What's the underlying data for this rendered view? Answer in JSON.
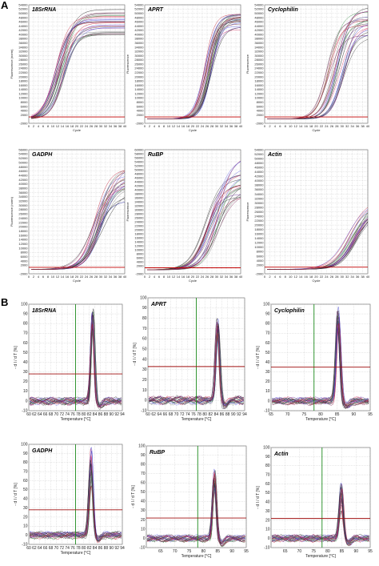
{
  "panels": {
    "A": "A",
    "B": "B"
  },
  "palette": [
    "#1a1a1a",
    "#3a3a3a",
    "#777777",
    "#c01830",
    "#e03c6a",
    "#7a1a50",
    "#3535c8",
    "#5a5ae0",
    "#2a8a3a",
    "#6a2a9a"
  ],
  "threshold_color": "#c00000",
  "melt_vline_color": "#1c8a1c",
  "melt_hline_color": "#a01010",
  "chart_data": [
    {
      "type": "line",
      "group": "A",
      "title": "18SrRNA",
      "xlabel": "Cycle",
      "ylabel": "Fluorescence (norm)",
      "xlim": [
        0,
        40
      ],
      "ylim": [
        -2000,
        54000
      ],
      "xticks": [
        0,
        2,
        4,
        6,
        8,
        10,
        12,
        14,
        16,
        18,
        20,
        22,
        24,
        26,
        28,
        30,
        32,
        34,
        36,
        38,
        40
      ],
      "yticks": [
        -2000,
        2000,
        4000,
        6000,
        8000,
        10000,
        12000,
        14000,
        16000,
        18000,
        20000,
        22000,
        24000,
        26000,
        28000,
        30000,
        32000,
        34000,
        36000,
        38000,
        40000,
        42000,
        44000,
        46000,
        48000,
        50000,
        52000,
        54000
      ],
      "threshold": 1000,
      "grid": true,
      "curve_count": 24,
      "midpoint_range": [
        11,
        15
      ],
      "plateau_range": [
        39000,
        52000
      ],
      "slope_range": [
        0.3,
        0.4
      ]
    },
    {
      "type": "line",
      "group": "A",
      "title": "APRT",
      "xlabel": "Cycle",
      "ylabel": "Fluorescence",
      "xlim": [
        0,
        40
      ],
      "ylim": [
        -2000,
        54000
      ],
      "xticks": [
        0,
        2,
        4,
        6,
        8,
        10,
        12,
        14,
        16,
        18,
        20,
        22,
        24,
        26,
        28,
        30,
        32,
        34,
        36,
        38,
        40
      ],
      "yticks": [
        -2000,
        2000,
        4000,
        6000,
        8000,
        10000,
        12000,
        14000,
        16000,
        18000,
        20000,
        22000,
        24000,
        26000,
        28000,
        30000,
        32000,
        34000,
        36000,
        38000,
        40000,
        42000,
        44000,
        46000,
        48000,
        50000,
        52000,
        54000
      ],
      "threshold": 1000,
      "grid": true,
      "curve_count": 24,
      "midpoint_range": [
        25,
        28
      ],
      "plateau_range": [
        42000,
        50000
      ],
      "slope_range": [
        0.4,
        0.5
      ]
    },
    {
      "type": "line",
      "group": "A",
      "title": "Cyclophilin",
      "xlabel": "Cycle",
      "ylabel": "Fluorescence",
      "xlim": [
        0,
        40
      ],
      "ylim": [
        -2000,
        54000
      ],
      "xticks": [
        0,
        2,
        4,
        6,
        8,
        10,
        12,
        14,
        16,
        18,
        20,
        22,
        24,
        26,
        28,
        30,
        32,
        34,
        36,
        38,
        40
      ],
      "yticks": [
        -2000,
        2000,
        4000,
        6000,
        8000,
        10000,
        12000,
        14000,
        16000,
        18000,
        20000,
        22000,
        24000,
        26000,
        28000,
        30000,
        32000,
        34000,
        36000,
        38000,
        40000,
        42000,
        44000,
        46000,
        48000,
        50000,
        52000,
        54000
      ],
      "threshold": 1000,
      "grid": true,
      "curve_count": 24,
      "midpoint_range": [
        24,
        31
      ],
      "plateau_range": [
        38000,
        54000
      ],
      "slope_range": [
        0.35,
        0.45
      ]
    },
    {
      "type": "line",
      "group": "A",
      "title": "GADPH",
      "xlabel": "Cycle",
      "ylabel": "Fluorescence (norm)",
      "xlim": [
        0,
        40
      ],
      "ylim": [
        -2000,
        56000
      ],
      "xticks": [
        0,
        2,
        4,
        6,
        8,
        10,
        12,
        14,
        16,
        18,
        20,
        22,
        24,
        26,
        28,
        30,
        32,
        34,
        36,
        38,
        40
      ],
      "yticks": [
        -2000,
        2000,
        4000,
        6000,
        8000,
        10000,
        12000,
        14000,
        16000,
        18000,
        20000,
        22000,
        24000,
        26000,
        28000,
        30000,
        32000,
        34000,
        36000,
        38000,
        40000,
        42000,
        44000,
        46000,
        48000,
        50000,
        52000,
        54000,
        56000
      ],
      "threshold": 1000,
      "grid": true,
      "curve_count": 24,
      "midpoint_range": [
        27,
        31
      ],
      "plateau_range": [
        32000,
        50000
      ],
      "slope_range": [
        0.25,
        0.35
      ]
    },
    {
      "type": "line",
      "group": "A",
      "title": "RuBP",
      "xlabel": "Cycle",
      "ylabel": "Fluorescence",
      "xlim": [
        0,
        40
      ],
      "ylim": [
        -2000,
        60000
      ],
      "xticks": [
        0,
        2,
        4,
        6,
        8,
        10,
        12,
        14,
        16,
        18,
        20,
        22,
        24,
        26,
        28,
        30,
        32,
        34,
        36,
        38,
        40
      ],
      "yticks": [
        -2000,
        2000,
        4000,
        6000,
        8000,
        10000,
        12000,
        14000,
        16000,
        18000,
        20000,
        22000,
        24000,
        26000,
        28000,
        30000,
        32000,
        34000,
        36000,
        38000,
        40000,
        42000,
        44000,
        46000,
        48000,
        50000,
        52000,
        54000,
        56000,
        58000,
        60000
      ],
      "threshold": 1000,
      "grid": true,
      "curve_count": 24,
      "midpoint_range": [
        25,
        31
      ],
      "plateau_range": [
        36000,
        58000
      ],
      "slope_range": [
        0.25,
        0.35
      ]
    },
    {
      "type": "line",
      "group": "A",
      "title": "Actin",
      "xlabel": "Cycle",
      "ylabel": "Fluorescence",
      "xlim": [
        0,
        40
      ],
      "ylim": [
        -2000,
        54000
      ],
      "xticks": [
        0,
        2,
        4,
        6,
        8,
        10,
        12,
        14,
        16,
        18,
        20,
        22,
        24,
        26,
        28,
        30,
        32,
        34,
        36,
        38,
        40
      ],
      "yticks": [
        -2000,
        2000,
        4000,
        6000,
        8000,
        10000,
        12000,
        14000,
        16000,
        18000,
        20000,
        22000,
        24000,
        26000,
        28000,
        30000,
        32000,
        34000,
        36000,
        38000,
        40000,
        42000,
        44000,
        46000,
        48000,
        50000,
        52000,
        54000
      ],
      "threshold": 1000,
      "grid": true,
      "curve_count": 24,
      "midpoint_range": [
        32,
        36
      ],
      "plateau_range": [
        24000,
        32000
      ],
      "slope_range": [
        0.25,
        0.33
      ]
    },
    {
      "type": "line",
      "group": "B",
      "title": "18SrRNA",
      "xlabel": "Temperature [°C]",
      "ylabel": "- d I / d T  [%]",
      "xlim": [
        60,
        94
      ],
      "ylim": [
        -10,
        100
      ],
      "xticks": [
        60,
        62,
        64,
        66,
        68,
        70,
        72,
        74,
        76,
        78,
        80,
        82,
        84,
        86,
        88,
        90,
        92,
        94
      ],
      "yticks": [
        -10,
        0,
        10,
        20,
        30,
        40,
        50,
        60,
        70,
        80,
        90,
        100
      ],
      "vline": 77,
      "hline": 28,
      "grid": true,
      "curve_count": 24,
      "peak_x": 83.2,
      "peak_range": [
        72,
        98
      ],
      "peak_width": 0.55
    },
    {
      "type": "line",
      "group": "B",
      "title": "APRT",
      "xlabel": "Temperature [°C]",
      "ylabel": "- d I / d T  [%]",
      "xlim": [
        60,
        94
      ],
      "ylim": [
        -10,
        100
      ],
      "xticks": [
        60,
        62,
        64,
        66,
        68,
        70,
        72,
        74,
        76,
        78,
        80,
        82,
        84,
        86,
        88,
        90,
        92,
        94
      ],
      "yticks": [
        -10,
        0,
        10,
        20,
        30,
        40,
        50,
        60,
        70,
        80,
        90,
        100
      ],
      "vline": 77,
      "hline": 33,
      "grid": true,
      "curve_count": 24,
      "peak_x": 84.5,
      "peak_range": [
        62,
        80
      ],
      "peak_width": 0.6
    },
    {
      "type": "line",
      "group": "B",
      "title": "Cyclophilin",
      "xlabel": "Temperature [°C]",
      "ylabel": "- d I / d T  [%]",
      "xlim": [
        65,
        95
      ],
      "ylim": [
        -10,
        100
      ],
      "xticks": [
        65,
        70,
        75,
        80,
        85,
        90,
        95
      ],
      "yticks": [
        -10,
        0,
        10,
        20,
        30,
        40,
        50,
        60,
        70,
        80,
        90,
        100
      ],
      "vline": 78,
      "hline": 35,
      "grid": true,
      "curve_count": 24,
      "peak_x": 85.3,
      "peak_range": [
        78,
        97
      ],
      "peak_width": 0.55
    },
    {
      "type": "line",
      "group": "B",
      "title": "GADPH",
      "xlabel": "Temperature [°C]",
      "ylabel": "- d I / d T  [%]",
      "xlim": [
        60,
        94
      ],
      "ylim": [
        -10,
        100
      ],
      "xticks": [
        60,
        62,
        64,
        66,
        68,
        70,
        72,
        74,
        76,
        78,
        80,
        82,
        84,
        86,
        88,
        90,
        92,
        94
      ],
      "yticks": [
        -10,
        0,
        10,
        20,
        30,
        40,
        50,
        60,
        70,
        80,
        90,
        100
      ],
      "vline": 77,
      "hline": 28,
      "grid": true,
      "curve_count": 24,
      "peak_x": 82.6,
      "peak_range": [
        55,
        96
      ],
      "peak_width": 0.6
    },
    {
      "type": "line",
      "group": "B",
      "title": "RuBP",
      "xlabel": "Temperature [°C]",
      "ylabel": "- d I / d T  [%]",
      "xlim": [
        60,
        95
      ],
      "ylim": [
        -10,
        100
      ],
      "xticks": [
        65,
        70,
        75,
        80,
        85,
        90,
        95
      ],
      "yticks": [
        -10,
        0,
        10,
        20,
        30,
        40,
        50,
        60,
        70,
        80,
        90,
        100
      ],
      "vline": 78,
      "hline": 22,
      "grid": true,
      "curve_count": 24,
      "peak_x": 83.8,
      "peak_range": [
        50,
        74
      ],
      "peak_width": 0.55
    },
    {
      "type": "line",
      "group": "B",
      "title": "Actin",
      "xlabel": "Temperature [°C]",
      "ylabel": "- d I / d T  [%]",
      "xlim": [
        60,
        95
      ],
      "ylim": [
        -10,
        100
      ],
      "xticks": [
        65,
        70,
        75,
        80,
        85,
        90,
        95
      ],
      "yticks": [
        -10,
        0,
        10,
        20,
        30,
        40,
        50,
        60,
        70,
        80,
        90,
        100
      ],
      "vline": 78,
      "hline": 22,
      "grid": true,
      "curve_count": 24,
      "peak_x": 84.8,
      "peak_range": [
        30,
        65
      ],
      "peak_width": 0.6
    }
  ]
}
